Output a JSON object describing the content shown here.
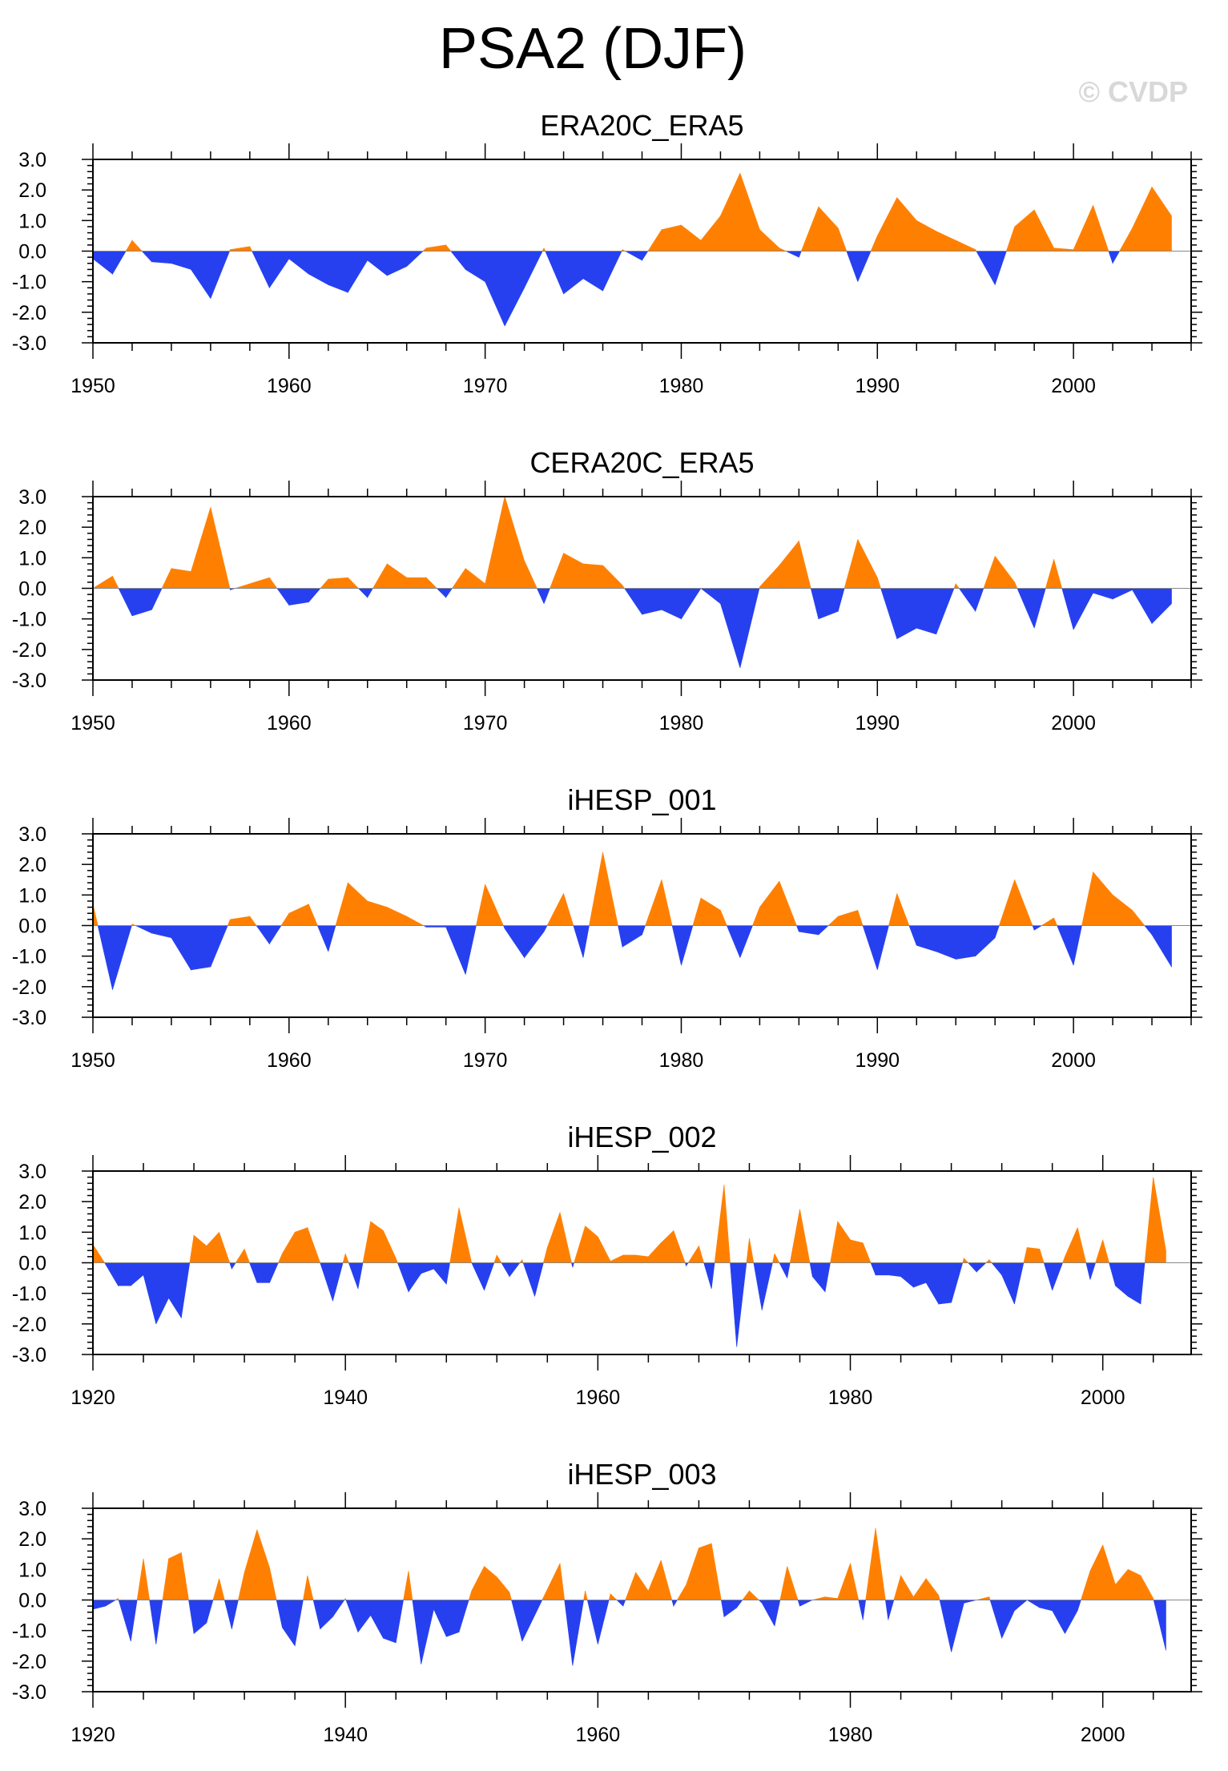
{
  "page": {
    "title": "PSA2 (DJF)",
    "watermark": "© CVDP",
    "colors": {
      "positive": "#ff8000",
      "negative": "#2640f0",
      "axis": "#000000"
    }
  },
  "chart_data": [
    {
      "type": "area",
      "title": "ERA20C_ERA5",
      "xlim": [
        1950,
        2006
      ],
      "ylim": [
        -3,
        3
      ],
      "xticks": [
        1950,
        1960,
        1970,
        1980,
        1990,
        2000
      ],
      "yticks": [
        "3.0",
        "2.0",
        "1.0",
        "0.0",
        "-1.0",
        "-2.0",
        "-3.0"
      ],
      "start_year": 1950,
      "values": [
        -0.25,
        -0.75,
        0.35,
        -0.35,
        -0.4,
        -0.6,
        -1.55,
        0.05,
        0.15,
        -1.2,
        -0.25,
        -0.75,
        -1.1,
        -1.35,
        -0.3,
        -0.8,
        -0.5,
        0.1,
        0.2,
        -0.6,
        -1.0,
        -2.45,
        -1.2,
        0.1,
        -1.4,
        -0.9,
        -1.3,
        0.05,
        -0.3,
        0.7,
        0.85,
        0.35,
        1.15,
        2.55,
        0.7,
        0.1,
        -0.2,
        1.45,
        0.75,
        -1.0,
        0.5,
        1.75,
        1.0,
        0.65,
        0.35,
        0.05,
        -1.1,
        0.8,
        1.35,
        0.1,
        0.05,
        1.5,
        -0.4,
        0.75,
        2.1,
        1.15
      ]
    },
    {
      "type": "area",
      "title": "CERA20C_ERA5",
      "xlim": [
        1950,
        2006
      ],
      "ylim": [
        -3,
        3
      ],
      "xticks": [
        1950,
        1960,
        1970,
        1980,
        1990,
        2000
      ],
      "yticks": [
        "3.0",
        "2.0",
        "1.0",
        "0.0",
        "-1.0",
        "-2.0",
        "-3.0"
      ],
      "start_year": 1950,
      "values": [
        0.0,
        0.4,
        -0.9,
        -0.7,
        0.65,
        0.55,
        2.65,
        -0.05,
        0.15,
        0.35,
        -0.55,
        -0.45,
        0.3,
        0.35,
        -0.3,
        0.8,
        0.35,
        0.35,
        -0.3,
        0.65,
        0.15,
        3.0,
        0.9,
        -0.5,
        1.15,
        0.8,
        0.75,
        0.1,
        -0.85,
        -0.7,
        -1.0,
        0.0,
        -0.5,
        -2.6,
        0.05,
        0.75,
        1.55,
        -1.0,
        -0.75,
        1.6,
        0.35,
        -1.65,
        -1.3,
        -1.5,
        0.15,
        -0.75,
        1.05,
        0.2,
        -1.3,
        0.95,
        -1.35,
        -0.15,
        -0.35,
        -0.05,
        -1.15,
        -0.5
      ]
    },
    {
      "type": "area",
      "title": "iHESP_001",
      "xlim": [
        1950,
        2006
      ],
      "ylim": [
        -3,
        3
      ],
      "xticks": [
        1950,
        1960,
        1970,
        1980,
        1990,
        2000
      ],
      "yticks": [
        "3.0",
        "2.0",
        "1.0",
        "0.0",
        "-1.0",
        "-2.0",
        "-3.0"
      ],
      "start_year": 1950,
      "values": [
        0.7,
        -2.1,
        0.05,
        -0.25,
        -0.4,
        -1.45,
        -1.35,
        0.2,
        0.3,
        -0.6,
        0.4,
        0.7,
        -0.85,
        1.4,
        0.8,
        0.6,
        0.3,
        -0.05,
        -0.05,
        -1.6,
        1.35,
        -0.1,
        -1.05,
        -0.2,
        1.05,
        -1.05,
        2.4,
        -0.7,
        -0.3,
        1.5,
        -1.3,
        0.9,
        0.5,
        -1.05,
        0.6,
        1.45,
        -0.2,
        -0.3,
        0.3,
        0.5,
        -1.45,
        1.05,
        -0.65,
        -0.85,
        -1.1,
        -1.0,
        -0.4,
        1.5,
        -0.15,
        0.25,
        -1.3,
        1.75,
        1.0,
        0.5,
        -0.3,
        -1.35
      ]
    },
    {
      "type": "area",
      "title": "iHESP_002",
      "xlim": [
        1920,
        2007
      ],
      "ylim": [
        -3,
        3
      ],
      "xticks": [
        1920,
        1940,
        1960,
        1980,
        2000
      ],
      "yticks": [
        "3.0",
        "2.0",
        "1.0",
        "0.0",
        "-1.0",
        "-2.0",
        "-3.0"
      ],
      "start_year": 1920,
      "values": [
        0.6,
        -0.05,
        -0.75,
        -0.75,
        -0.4,
        -2.0,
        -1.15,
        -1.8,
        0.9,
        0.55,
        1.0,
        -0.2,
        0.45,
        -0.65,
        -0.65,
        0.3,
        1.0,
        1.15,
        0.0,
        -1.25,
        0.3,
        -0.85,
        1.35,
        1.05,
        0.15,
        -0.95,
        -0.35,
        -0.2,
        -0.7,
        1.8,
        0.0,
        -0.9,
        0.25,
        -0.45,
        0.1,
        -1.1,
        0.5,
        1.65,
        -0.15,
        1.2,
        0.85,
        0.05,
        0.25,
        0.25,
        0.2,
        0.65,
        1.05,
        -0.1,
        0.55,
        -0.85,
        2.55,
        -2.75,
        0.8,
        -1.55,
        0.3,
        -0.5,
        1.75,
        -0.45,
        -0.95,
        1.35,
        0.75,
        0.65,
        -0.4,
        -0.4,
        -0.45,
        -0.8,
        -0.65,
        -1.35,
        -1.3,
        0.15,
        -0.3,
        0.1,
        -0.4,
        -1.35,
        0.5,
        0.45,
        -0.9,
        0.2,
        1.15,
        -0.55,
        0.75,
        -0.75,
        -1.1,
        -1.35,
        2.8,
        0.4
      ]
    },
    {
      "type": "area",
      "title": "iHESP_003",
      "xlim": [
        1920,
        2007
      ],
      "ylim": [
        -3,
        3
      ],
      "xticks": [
        1920,
        1940,
        1960,
        1980,
        2000
      ],
      "yticks": [
        "3.0",
        "2.0",
        "1.0",
        "0.0",
        "-1.0",
        "-2.0",
        "-3.0"
      ],
      "start_year": 1920,
      "values": [
        -0.3,
        -0.2,
        0.05,
        -1.35,
        1.35,
        -1.45,
        1.35,
        1.55,
        -1.1,
        -0.75,
        0.7,
        -0.95,
        0.9,
        2.3,
        1.05,
        -0.9,
        -1.5,
        0.8,
        -0.95,
        -0.55,
        0.05,
        -1.05,
        -0.5,
        -1.25,
        -1.4,
        0.95,
        -2.1,
        -0.3,
        -1.2,
        -1.05,
        0.3,
        1.1,
        0.75,
        0.25,
        -1.35,
        -0.5,
        0.35,
        1.2,
        -2.15,
        0.3,
        -1.45,
        0.2,
        -0.2,
        0.9,
        0.3,
        1.3,
        -0.2,
        0.5,
        1.7,
        1.85,
        -0.55,
        -0.25,
        0.3,
        -0.1,
        -0.85,
        1.1,
        -0.2,
        0.0,
        0.1,
        0.05,
        1.2,
        -0.65,
        2.35,
        -0.65,
        0.8,
        0.1,
        0.7,
        0.15,
        -1.7,
        -0.1,
        0.0,
        0.1,
        -1.25,
        -0.35,
        0.0,
        -0.25,
        -0.35,
        -1.1,
        -0.35,
        0.95,
        1.8,
        0.5,
        1.0,
        0.8,
        0.05,
        -1.65
      ]
    }
  ]
}
